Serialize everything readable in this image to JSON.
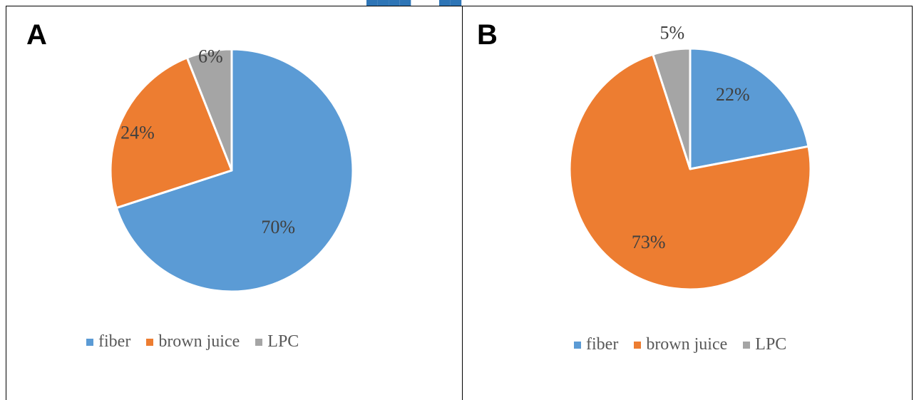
{
  "chart_data": [
    {
      "type": "pie",
      "panel_label": "A",
      "categories": [
        "fiber",
        "brown juice",
        "LPC"
      ],
      "values": [
        70,
        24,
        6
      ],
      "data_labels": [
        "70%",
        "24%",
        "6%"
      ],
      "colors": [
        "#5B9BD5",
        "#ED7D31",
        "#A5A5A5"
      ],
      "legend": [
        "fiber",
        "brown juice",
        "LPC"
      ],
      "legend_position": "bottom"
    },
    {
      "type": "pie",
      "panel_label": "B",
      "categories": [
        "fiber",
        "brown juice",
        "LPC"
      ],
      "values": [
        22,
        73,
        5
      ],
      "data_labels": [
        "22%",
        "73%",
        "5%"
      ],
      "colors": [
        "#5B9BD5",
        "#ED7D31",
        "#A5A5A5"
      ],
      "legend": [
        "fiber",
        "brown juice",
        "LPC"
      ],
      "legend_position": "bottom"
    }
  ]
}
